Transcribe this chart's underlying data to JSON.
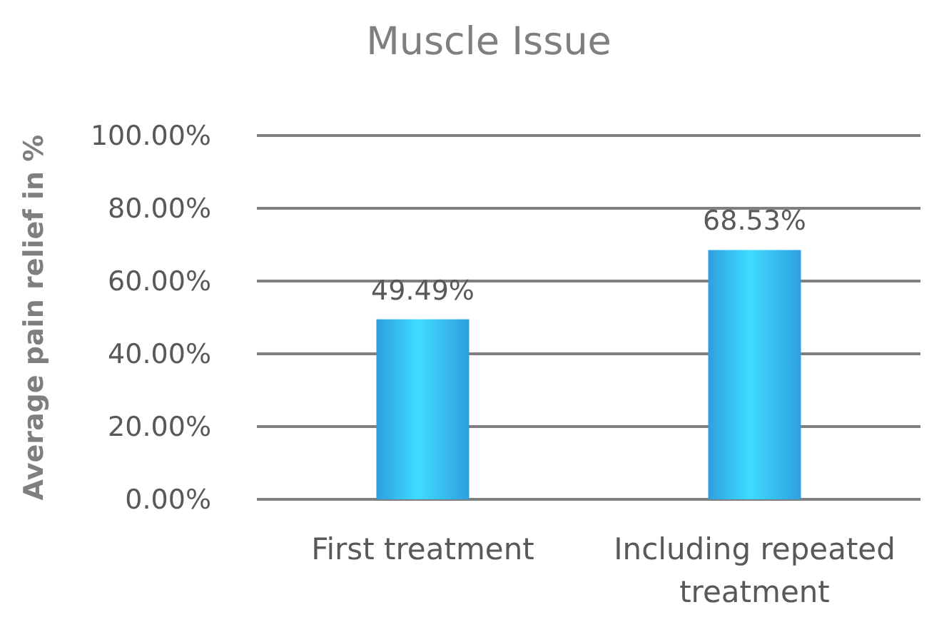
{
  "chart_data": {
    "type": "bar",
    "title": "Muscle Issue",
    "ylabel": "Average pain relief in %",
    "categories": [
      "First treatment",
      "Including repeated treatment"
    ],
    "values": [
      49.49,
      68.53
    ],
    "value_labels": [
      "49.49%",
      "68.53%"
    ],
    "color": "#2e9fdf",
    "ylim": [
      0,
      100
    ],
    "yticks": [
      {
        "value": 0,
        "label": "0.00%"
      },
      {
        "value": 20,
        "label": "20.00%"
      },
      {
        "value": 40,
        "label": "40.00%"
      },
      {
        "value": 60,
        "label": "60.00%"
      },
      {
        "value": 80,
        "label": "80.00%"
      },
      {
        "value": 100,
        "label": "100.00%"
      }
    ],
    "grid": "y"
  }
}
